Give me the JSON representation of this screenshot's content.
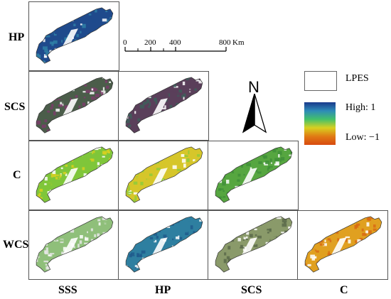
{
  "row_labels": [
    "HP",
    "SCS",
    "C",
    "WCS"
  ],
  "col_labels": [
    "SSS",
    "HP",
    "SCS",
    "C"
  ],
  "scale_bar": {
    "ticks": [
      "0",
      "200",
      "400",
      "800"
    ],
    "unit": "Km"
  },
  "north_arrow": {
    "label": "N"
  },
  "legend": {
    "outline_label": "LPES",
    "high_label": "High: 1",
    "low_label": "Low: −1",
    "gradient_colors": [
      "#1a3a8c",
      "#2e8bb8",
      "#43c06a",
      "#d8d020",
      "#e07a14",
      "#d84a10"
    ]
  },
  "panels": [
    {
      "id": "hp-sss",
      "row": "HP",
      "col": "SSS",
      "dominant": "#1f4a8c",
      "secondary": "#2f7fa6"
    },
    {
      "id": "scs-sss",
      "row": "SCS",
      "col": "SSS",
      "dominant": "#4b5d4a",
      "secondary": "#7a3d6a"
    },
    {
      "id": "scs-hp",
      "row": "SCS",
      "col": "HP",
      "dominant": "#5a3f5a",
      "secondary": "#3d5f5a"
    },
    {
      "id": "c-sss",
      "row": "C",
      "col": "SSS",
      "dominant": "#7fc63a",
      "secondary": "#d8d020"
    },
    {
      "id": "c-hp",
      "row": "C",
      "col": "HP",
      "dominant": "#d6c62a",
      "secondary": "#8fcb3a"
    },
    {
      "id": "c-scs",
      "row": "C",
      "col": "SCS",
      "dominant": "#56a640",
      "secondary": "#3f8f3a"
    },
    {
      "id": "wcs-sss",
      "row": "WCS",
      "col": "SSS",
      "dominant": "#8fbf7a",
      "secondary": "#e6e6e6"
    },
    {
      "id": "wcs-hp",
      "row": "WCS",
      "col": "HP",
      "dominant": "#2e7fa0",
      "secondary": "#1f5a8c"
    },
    {
      "id": "wcs-scs",
      "row": "WCS",
      "col": "SCS",
      "dominant": "#8a9a6a",
      "secondary": "#5a6a4a"
    },
    {
      "id": "wcs-c",
      "row": "WCS",
      "col": "C",
      "dominant": "#e0a020",
      "secondary": "#d86a14"
    }
  ]
}
